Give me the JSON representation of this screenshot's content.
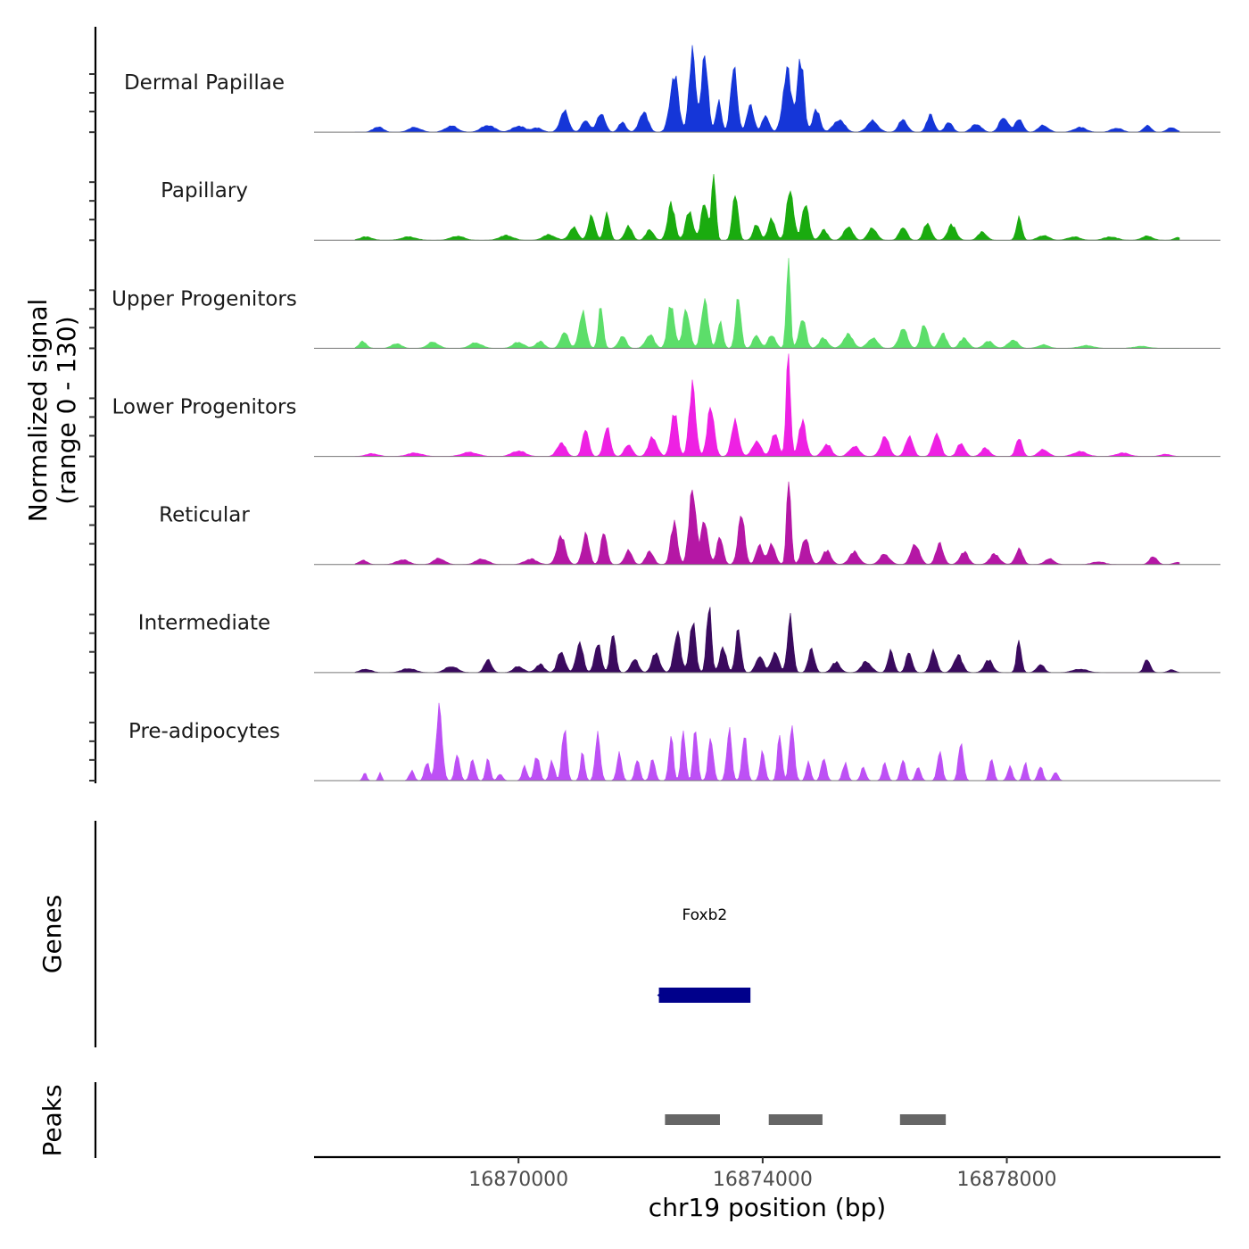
{
  "chart_data": {
    "type": "area",
    "chromosome": "chr19",
    "x_range": [
      16866650,
      16881500
    ],
    "signal_range": [
      0,
      130
    ],
    "xlabel": "chr19 position (bp)",
    "ylabel_line1": "Normalized signal",
    "ylabel_line2": "(range 0 - 130)",
    "x_ticks": [
      {
        "value": 16870000,
        "label": "16870000"
      },
      {
        "value": 16874000,
        "label": "16874000"
      },
      {
        "value": 16878000,
        "label": "16878000"
      }
    ],
    "series": [
      {
        "name": "Dermal Papillae",
        "color": "#1536d8",
        "peaks": [
          [
            16867700,
            8,
            80
          ],
          [
            16868300,
            7,
            100
          ],
          [
            16868900,
            9,
            100
          ],
          [
            16869500,
            10,
            110
          ],
          [
            16870000,
            9,
            100
          ],
          [
            16870300,
            6,
            90
          ],
          [
            16870750,
            30,
            70
          ],
          [
            16871100,
            18,
            60
          ],
          [
            16871350,
            28,
            65
          ],
          [
            16871700,
            14,
            60
          ],
          [
            16872050,
            30,
            70
          ],
          [
            16872550,
            82,
            70
          ],
          [
            16872850,
            112,
            55
          ],
          [
            16873050,
            105,
            55
          ],
          [
            16873280,
            42,
            45
          ],
          [
            16873530,
            90,
            55
          ],
          [
            16873800,
            40,
            55
          ],
          [
            16874050,
            25,
            55
          ],
          [
            16874400,
            88,
            70
          ],
          [
            16874620,
            105,
            55
          ],
          [
            16874880,
            32,
            60
          ],
          [
            16875250,
            18,
            90
          ],
          [
            16875800,
            16,
            90
          ],
          [
            16876300,
            18,
            70
          ],
          [
            16876750,
            25,
            60
          ],
          [
            16877050,
            15,
            60
          ],
          [
            16877500,
            12,
            80
          ],
          [
            16877950,
            22,
            70
          ],
          [
            16878200,
            20,
            60
          ],
          [
            16878600,
            10,
            80
          ],
          [
            16879200,
            7,
            100
          ],
          [
            16879800,
            6,
            90
          ],
          [
            16880300,
            10,
            60
          ],
          [
            16880700,
            7,
            70
          ]
        ]
      },
      {
        "name": "Papillary",
        "color": "#1aab0f",
        "peaks": [
          [
            16867500,
            5,
            100
          ],
          [
            16868200,
            5,
            120
          ],
          [
            16869000,
            6,
            110
          ],
          [
            16869800,
            7,
            110
          ],
          [
            16870500,
            8,
            100
          ],
          [
            16870900,
            18,
            70
          ],
          [
            16871200,
            35,
            55
          ],
          [
            16871450,
            40,
            45
          ],
          [
            16871800,
            20,
            60
          ],
          [
            16872150,
            16,
            60
          ],
          [
            16872500,
            52,
            60
          ],
          [
            16872800,
            42,
            60
          ],
          [
            16873050,
            55,
            55
          ],
          [
            16873200,
            90,
            35
          ],
          [
            16873550,
            72,
            45
          ],
          [
            16873900,
            22,
            55
          ],
          [
            16874150,
            30,
            60
          ],
          [
            16874450,
            78,
            55
          ],
          [
            16874700,
            55,
            55
          ],
          [
            16875000,
            15,
            60
          ],
          [
            16875400,
            20,
            70
          ],
          [
            16875800,
            18,
            70
          ],
          [
            16876300,
            20,
            60
          ],
          [
            16876700,
            25,
            60
          ],
          [
            16877100,
            22,
            70
          ],
          [
            16877600,
            12,
            70
          ],
          [
            16878200,
            32,
            45
          ],
          [
            16878600,
            7,
            90
          ],
          [
            16879100,
            5,
            100
          ],
          [
            16879700,
            5,
            110
          ],
          [
            16880300,
            6,
            90
          ],
          [
            16880800,
            4,
            60
          ]
        ]
      },
      {
        "name": "Upper Progenitors",
        "color": "#5cde6a",
        "peaks": [
          [
            16867450,
            10,
            60
          ],
          [
            16868000,
            7,
            80
          ],
          [
            16868600,
            9,
            90
          ],
          [
            16869300,
            8,
            100
          ],
          [
            16870000,
            9,
            90
          ],
          [
            16870350,
            10,
            70
          ],
          [
            16870750,
            25,
            60
          ],
          [
            16871050,
            50,
            60
          ],
          [
            16871350,
            60,
            40
          ],
          [
            16871700,
            18,
            60
          ],
          [
            16872150,
            20,
            70
          ],
          [
            16872500,
            65,
            55
          ],
          [
            16872750,
            58,
            55
          ],
          [
            16873050,
            72,
            55
          ],
          [
            16873300,
            38,
            45
          ],
          [
            16873600,
            70,
            45
          ],
          [
            16873900,
            20,
            55
          ],
          [
            16874150,
            20,
            60
          ],
          [
            16874420,
            135,
            32
          ],
          [
            16874650,
            45,
            55
          ],
          [
            16875000,
            15,
            70
          ],
          [
            16875400,
            20,
            80
          ],
          [
            16875800,
            15,
            80
          ],
          [
            16876300,
            28,
            70
          ],
          [
            16876650,
            36,
            55
          ],
          [
            16876950,
            22,
            60
          ],
          [
            16877300,
            15,
            70
          ],
          [
            16877700,
            10,
            80
          ],
          [
            16878100,
            12,
            80
          ],
          [
            16878600,
            5,
            90
          ],
          [
            16879300,
            4,
            120
          ],
          [
            16880200,
            3,
            120
          ]
        ]
      },
      {
        "name": "Lower Progenitors",
        "color": "#ee21e3",
        "peaks": [
          [
            16867600,
            4,
            100
          ],
          [
            16868300,
            5,
            120
          ],
          [
            16869200,
            6,
            130
          ],
          [
            16870000,
            8,
            110
          ],
          [
            16870700,
            20,
            70
          ],
          [
            16871100,
            42,
            50
          ],
          [
            16871450,
            40,
            55
          ],
          [
            16871800,
            18,
            60
          ],
          [
            16872200,
            28,
            70
          ],
          [
            16872550,
            65,
            55
          ],
          [
            16872850,
            100,
            55
          ],
          [
            16873150,
            75,
            55
          ],
          [
            16873550,
            50,
            60
          ],
          [
            16873900,
            22,
            70
          ],
          [
            16874200,
            32,
            60
          ],
          [
            16874420,
            148,
            35
          ],
          [
            16874650,
            50,
            60
          ],
          [
            16875050,
            18,
            70
          ],
          [
            16875500,
            15,
            80
          ],
          [
            16876000,
            28,
            70
          ],
          [
            16876400,
            30,
            60
          ],
          [
            16876850,
            35,
            60
          ],
          [
            16877250,
            20,
            60
          ],
          [
            16877650,
            12,
            70
          ],
          [
            16878200,
            28,
            50
          ],
          [
            16878600,
            10,
            80
          ],
          [
            16879200,
            7,
            110
          ],
          [
            16879900,
            5,
            110
          ],
          [
            16880600,
            3,
            90
          ]
        ]
      },
      {
        "name": "Reticular",
        "color": "#b517a5",
        "peaks": [
          [
            16867450,
            6,
            70
          ],
          [
            16868100,
            7,
            100
          ],
          [
            16868700,
            9,
            90
          ],
          [
            16869400,
            8,
            100
          ],
          [
            16870200,
            8,
            100
          ],
          [
            16870700,
            40,
            70
          ],
          [
            16871100,
            44,
            55
          ],
          [
            16871400,
            45,
            50
          ],
          [
            16871800,
            20,
            60
          ],
          [
            16872150,
            20,
            60
          ],
          [
            16872550,
            60,
            55
          ],
          [
            16872850,
            115,
            55
          ],
          [
            16873050,
            65,
            55
          ],
          [
            16873300,
            42,
            50
          ],
          [
            16873650,
            70,
            55
          ],
          [
            16873950,
            28,
            55
          ],
          [
            16874150,
            28,
            60
          ],
          [
            16874430,
            130,
            35
          ],
          [
            16874700,
            40,
            60
          ],
          [
            16875050,
            20,
            70
          ],
          [
            16875500,
            18,
            80
          ],
          [
            16876000,
            15,
            80
          ],
          [
            16876500,
            30,
            70
          ],
          [
            16876900,
            30,
            60
          ],
          [
            16877300,
            18,
            70
          ],
          [
            16877800,
            15,
            80
          ],
          [
            16878200,
            22,
            60
          ],
          [
            16878700,
            8,
            80
          ],
          [
            16879500,
            4,
            100
          ],
          [
            16880400,
            12,
            60
          ],
          [
            16880800,
            3,
            70
          ]
        ]
      },
      {
        "name": "Intermediate",
        "color": "#3a0a5e",
        "peaks": [
          [
            16867500,
            5,
            90
          ],
          [
            16868200,
            6,
            110
          ],
          [
            16868900,
            9,
            100
          ],
          [
            16869500,
            18,
            60
          ],
          [
            16870000,
            9,
            80
          ],
          [
            16870350,
            12,
            70
          ],
          [
            16870700,
            32,
            60
          ],
          [
            16871000,
            45,
            55
          ],
          [
            16871300,
            40,
            55
          ],
          [
            16871550,
            55,
            45
          ],
          [
            16871900,
            20,
            60
          ],
          [
            16872250,
            28,
            65
          ],
          [
            16872600,
            60,
            55
          ],
          [
            16872850,
            75,
            50
          ],
          [
            16873120,
            95,
            40
          ],
          [
            16873350,
            35,
            55
          ],
          [
            16873600,
            60,
            45
          ],
          [
            16873950,
            25,
            60
          ],
          [
            16874200,
            30,
            60
          ],
          [
            16874450,
            80,
            45
          ],
          [
            16874800,
            35,
            50
          ],
          [
            16875200,
            15,
            70
          ],
          [
            16875700,
            16,
            80
          ],
          [
            16876100,
            30,
            50
          ],
          [
            16876400,
            30,
            50
          ],
          [
            16876800,
            30,
            55
          ],
          [
            16877200,
            25,
            70
          ],
          [
            16877700,
            18,
            70
          ],
          [
            16878200,
            45,
            40
          ],
          [
            16878550,
            12,
            60
          ],
          [
            16879200,
            5,
            120
          ],
          [
            16880300,
            20,
            50
          ],
          [
            16880700,
            4,
            60
          ]
        ]
      },
      {
        "name": "Pre-adipocytes",
        "color": "#bd50f5",
        "peaks": [
          [
            16867480,
            12,
            30
          ],
          [
            16867730,
            12,
            25
          ],
          [
            16868250,
            14,
            40
          ],
          [
            16868500,
            26,
            40
          ],
          [
            16868700,
            100,
            50
          ],
          [
            16869000,
            38,
            40
          ],
          [
            16869250,
            32,
            40
          ],
          [
            16869500,
            35,
            35
          ],
          [
            16869700,
            10,
            40
          ],
          [
            16870100,
            20,
            40
          ],
          [
            16870300,
            35,
            45
          ],
          [
            16870550,
            28,
            40
          ],
          [
            16870750,
            75,
            40
          ],
          [
            16871050,
            40,
            35
          ],
          [
            16871300,
            70,
            40
          ],
          [
            16871650,
            38,
            40
          ],
          [
            16871950,
            30,
            40
          ],
          [
            16872200,
            32,
            40
          ],
          [
            16872500,
            70,
            35
          ],
          [
            16872700,
            78,
            35
          ],
          [
            16872900,
            80,
            35
          ],
          [
            16873150,
            65,
            40
          ],
          [
            16873450,
            75,
            40
          ],
          [
            16873700,
            65,
            40
          ],
          [
            16874000,
            40,
            40
          ],
          [
            16874280,
            70,
            35
          ],
          [
            16874480,
            80,
            40
          ],
          [
            16874750,
            30,
            35
          ],
          [
            16875000,
            35,
            40
          ],
          [
            16875350,
            25,
            40
          ],
          [
            16875650,
            20,
            40
          ],
          [
            16876000,
            25,
            40
          ],
          [
            16876300,
            30,
            40
          ],
          [
            16876550,
            20,
            40
          ],
          [
            16876900,
            42,
            40
          ],
          [
            16877250,
            58,
            40
          ],
          [
            16877750,
            35,
            35
          ],
          [
            16878050,
            20,
            40
          ],
          [
            16878300,
            25,
            35
          ],
          [
            16878550,
            20,
            40
          ],
          [
            16878800,
            12,
            40
          ]
        ]
      }
    ],
    "genes": [
      {
        "name": "Foxb2",
        "start": 16872300,
        "end": 16873800,
        "color": "#00008b"
      }
    ],
    "peaks": [
      {
        "start": 16872400,
        "end": 16873300
      },
      {
        "start": 16874100,
        "end": 16874980
      },
      {
        "start": 16876250,
        "end": 16877000
      }
    ],
    "peak_color": "#666666",
    "panel_labels": {
      "genes": "Genes",
      "peaks": "Peaks"
    }
  }
}
